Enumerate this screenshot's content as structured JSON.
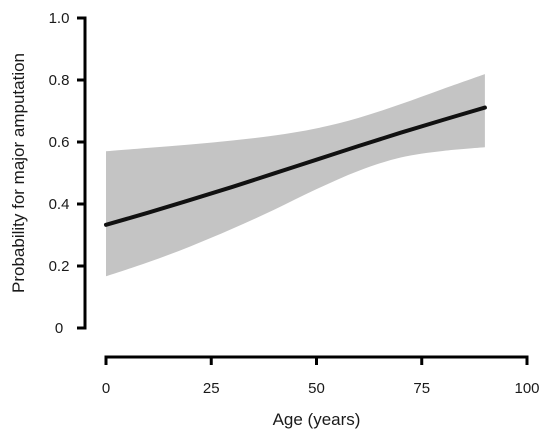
{
  "chart_data": {
    "type": "line",
    "title": "",
    "xlabel": "Age (years)",
    "ylabel": "Probability for major amputation",
    "xlim": [
      0,
      100
    ],
    "ylim": [
      0,
      1.0
    ],
    "x_ticks": [
      0,
      25,
      50,
      75,
      100
    ],
    "x_tick_labels": [
      "0",
      "25",
      "50",
      "75",
      "100"
    ],
    "y_ticks": [
      0,
      0.2,
      0.4,
      0.6,
      0.8,
      1.0
    ],
    "y_tick_labels": [
      "0",
      "0.2",
      "0.4",
      "0.6",
      "0.8",
      "1.0"
    ],
    "grid": false,
    "legend": "none",
    "colors": {
      "line": "#111111",
      "band": "#c4c4c4",
      "axis": "#000000"
    },
    "series": [
      {
        "x": [
          0,
          10,
          20,
          30,
          40,
          50,
          60,
          70,
          80,
          90
        ],
        "y": [
          0.333,
          0.372,
          0.413,
          0.455,
          0.499,
          0.543,
          0.587,
          0.63,
          0.671,
          0.711
        ],
        "lower": [
          0.167,
          0.212,
          0.263,
          0.32,
          0.382,
          0.448,
          0.507,
          0.55,
          0.571,
          0.583
        ],
        "upper": [
          0.57,
          0.581,
          0.592,
          0.605,
          0.621,
          0.644,
          0.678,
          0.722,
          0.771,
          0.819
        ]
      }
    ]
  }
}
